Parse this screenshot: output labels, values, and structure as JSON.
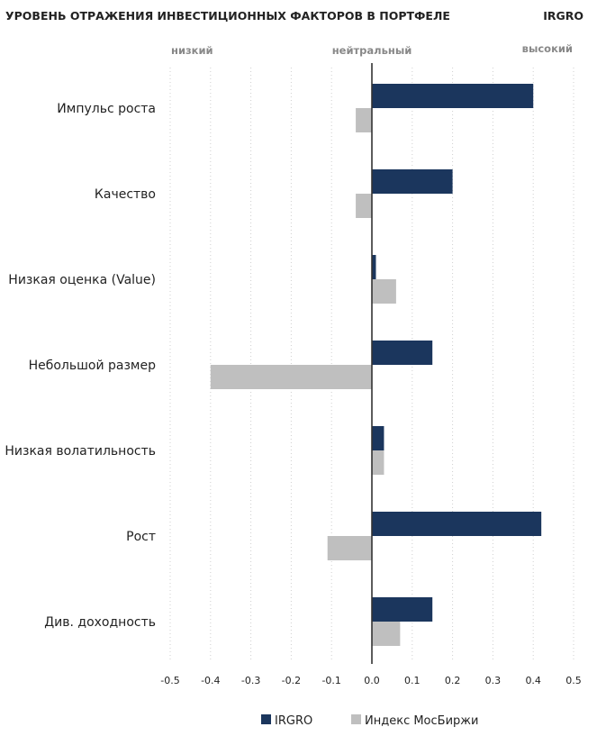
{
  "chart_data": {
    "type": "bar",
    "orientation": "horizontal",
    "title": "УРОВЕНЬ ОТРАЖЕНИЯ ИНВЕСТИЦИОННЫХ ФАКТОРОВ В ПОРТФЕЛЕ",
    "ticker": "IRGRO",
    "region_labels": {
      "low": "низкий",
      "neutral": "нейтральный",
      "high": "высокий"
    },
    "categories": [
      "Импульс роста",
      "Качество",
      "Низкая оценка (Value)",
      "Небольшой размер",
      "Низкая волатильность",
      "Рост",
      "Див. доходность"
    ],
    "series": [
      {
        "name": "IRGRO",
        "color": "#1b365d",
        "values": [
          0.4,
          0.2,
          0.01,
          0.15,
          0.03,
          0.42,
          0.15
        ]
      },
      {
        "name": "Индекс МосБиржи",
        "color": "#bfbfbf",
        "values": [
          -0.04,
          -0.04,
          0.06,
          -0.4,
          0.03,
          -0.11,
          0.07
        ]
      }
    ],
    "xlim": [
      -0.5,
      0.5
    ],
    "xticks": [
      "-0.5",
      "-0.4",
      "-0.3",
      "-0.2",
      "-0.1",
      "0.0",
      "0.1",
      "0.2",
      "0.3",
      "0.4",
      "0.5"
    ],
    "grid": "vertical-dotted",
    "legend": "bottom"
  }
}
